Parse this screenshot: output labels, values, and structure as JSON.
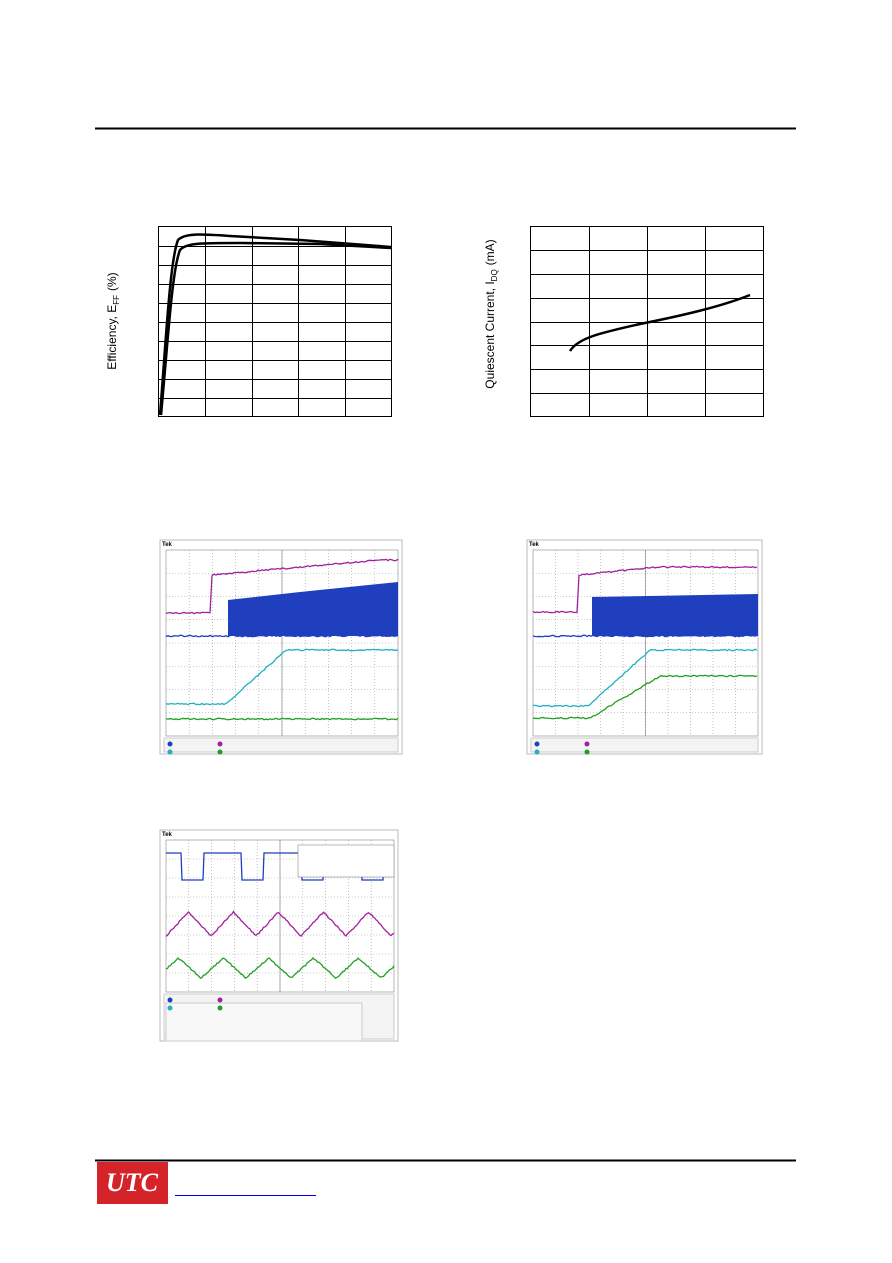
{
  "charts": [
    {
      "y_label": {
        "text": "Efficiency, E",
        "sub": "FF",
        "unit": "(%)"
      }
    },
    {
      "y_label": {
        "text": "Quiescent Current, I",
        "sub": "DQ",
        "unit": "(mA)"
      }
    }
  ],
  "scopes": [
    {
      "brand": "Tek"
    },
    {
      "brand": "Tek"
    },
    {
      "brand": "Tek"
    }
  ],
  "footer": {
    "logo": "UTC"
  }
}
